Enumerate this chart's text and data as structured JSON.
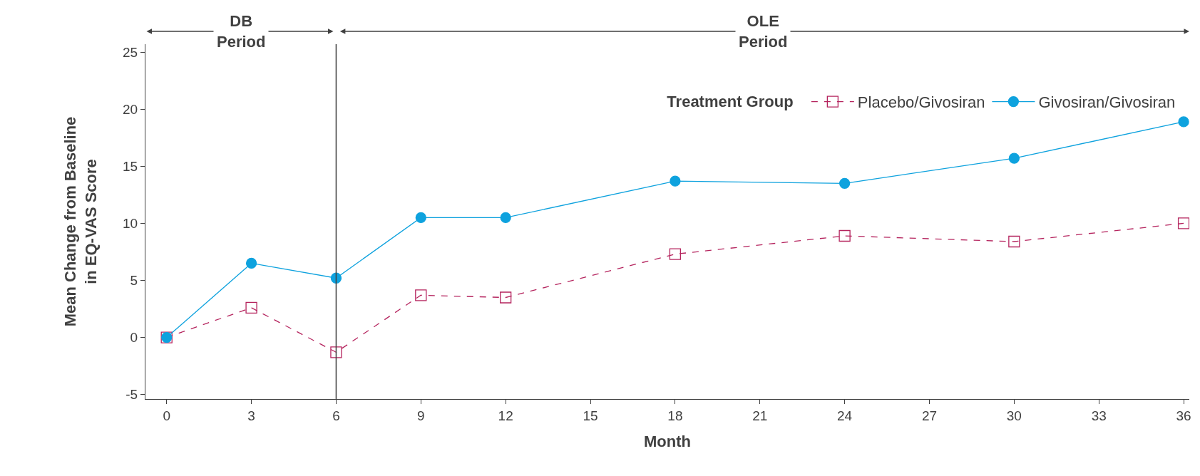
{
  "chart_data": {
    "type": "line",
    "xlabel": "Month",
    "ylabel": "Mean Change from Baseline\nin EQ-VAS Score",
    "legend_title": "Treatment Group",
    "x": [
      0,
      3,
      6,
      9,
      12,
      18,
      24,
      30,
      36
    ],
    "series": [
      {
        "name": "Placebo/Givosiran",
        "color": "#b5245e",
        "values": [
          0,
          2.6,
          -1.3,
          3.7,
          3.5,
          7.3,
          8.9,
          8.4,
          10.0
        ],
        "marker": "square",
        "line_style": "dashed"
      },
      {
        "name": "Givosiran/Givosiran",
        "color": "#0ea2de",
        "values": [
          0,
          6.5,
          5.2,
          10.5,
          10.5,
          13.7,
          13.5,
          15.7,
          18.9
        ],
        "marker": "circle",
        "line_style": "solid"
      }
    ],
    "xlim": [
      -0.75,
      36.2
    ],
    "xticks": [
      0,
      3,
      6,
      9,
      12,
      15,
      18,
      21,
      24,
      27,
      30,
      33,
      36
    ],
    "ylim": [
      -5.4,
      25.7
    ],
    "yticks": [
      -5,
      0,
      5,
      10,
      15,
      20,
      25
    ],
    "ref_lines": [
      {
        "axis": "x",
        "value": 6,
        "color": "#404040"
      }
    ],
    "annotations": [
      "DB\nPeriod",
      "OLE\nPeriod"
    ],
    "legend": "top right"
  }
}
